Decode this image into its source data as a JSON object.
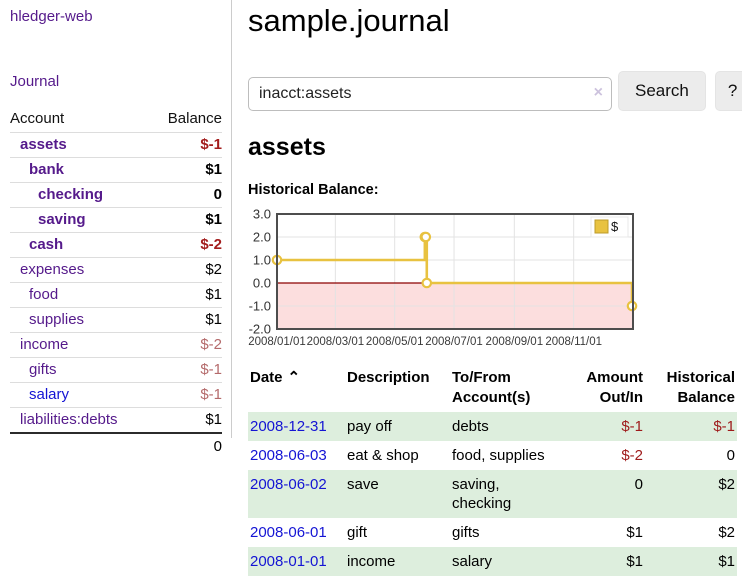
{
  "app": {
    "brand": "hledger-web"
  },
  "colors": {
    "link_purple": "#551a8b",
    "link_blue": "#1414d4",
    "negative_strong": "#a31d1d",
    "negative_soft": "#b46a6b",
    "row_green": "#ddeedd"
  },
  "sidebar": {
    "journal_link": "Journal",
    "account_header": "Account",
    "balance_header": "Balance",
    "accounts": [
      {
        "name": "assets",
        "balance": "$-1",
        "depth": 1,
        "bold": true
      },
      {
        "name": "bank",
        "balance": "$1",
        "depth": 2,
        "bold": true
      },
      {
        "name": "checking",
        "balance": "0",
        "depth": 3,
        "bold": true
      },
      {
        "name": "saving",
        "balance": "$1",
        "depth": 3,
        "bold": true
      },
      {
        "name": "cash",
        "balance": "$-2",
        "depth": 2,
        "bold": true
      },
      {
        "name": "expenses",
        "balance": "$2",
        "depth": 1
      },
      {
        "name": "food",
        "balance": "$1",
        "depth": 2
      },
      {
        "name": "supplies",
        "balance": "$1",
        "depth": 2
      },
      {
        "name": "income",
        "balance": "$-2",
        "depth": 1
      },
      {
        "name": "gifts",
        "balance": "$-1",
        "depth": 2
      },
      {
        "name": "salary",
        "balance": "$-1",
        "depth": 2,
        "unvisited": true
      },
      {
        "name": "liabilities:debts",
        "balance": "$1",
        "depth": 1
      }
    ],
    "total": "0"
  },
  "main": {
    "title": "sample.journal",
    "search": {
      "value": "inacct:assets",
      "clear_icon": "×",
      "search_button": "Search",
      "help_button": "?"
    },
    "account_heading": "assets",
    "chart_label": "Historical Balance:"
  },
  "chart_data": {
    "type": "line",
    "step": true,
    "title": "Historical Balance",
    "ylim": [
      -2,
      3
    ],
    "x_total_days": 366,
    "grid": true,
    "legend_position": "top-right",
    "series": [
      {
        "name": "$",
        "points": [
          {
            "date": "2008-01-01",
            "day": 0,
            "value": 1
          },
          {
            "date": "2008-06-01",
            "day": 152,
            "value": 2
          },
          {
            "date": "2008-06-02",
            "day": 153,
            "value": 2
          },
          {
            "date": "2008-06-03",
            "day": 154,
            "value": 0
          },
          {
            "date": "2008-12-31",
            "day": 365,
            "value": -1
          }
        ]
      }
    ],
    "y_ticks": [
      {
        "value": 3,
        "label": "3.0"
      },
      {
        "value": 2,
        "label": "2.0"
      },
      {
        "value": 1,
        "label": "1.0"
      },
      {
        "value": 0,
        "label": "0.0"
      },
      {
        "value": -1,
        "label": "-1.0"
      },
      {
        "value": -2,
        "label": "-2.0"
      }
    ],
    "x_ticks": [
      {
        "day": 0,
        "label": "2008/01/01"
      },
      {
        "day": 60,
        "label": "2008/03/01"
      },
      {
        "day": 121,
        "label": "2008/05/01"
      },
      {
        "day": 182,
        "label": "2008/07/01"
      },
      {
        "day": 244,
        "label": "2008/09/01"
      },
      {
        "day": 305,
        "label": "2008/11/01"
      }
    ],
    "colors": {
      "series": "#e8c240",
      "negative_fill": "#fcdede",
      "zero_line": "#8b0000",
      "grid": "#e3e3e3",
      "border": "#4d4d4d"
    }
  },
  "register": {
    "headers": {
      "date": "Date",
      "description": "Description",
      "accounts": "To/From Account(s)",
      "amount": "Amount Out/In",
      "balance": "Historical Balance"
    },
    "sort_icon": "⌃",
    "rows": [
      {
        "date": "2008-12-31",
        "description": "pay off",
        "accounts": "debts",
        "amount": "$-1",
        "balance": "$-1"
      },
      {
        "date": "2008-06-03",
        "description": "eat & shop",
        "accounts": "food, supplies",
        "amount": "$-2",
        "balance": "0"
      },
      {
        "date": "2008-06-02",
        "description": "save",
        "accounts": "saving, checking",
        "amount": "0",
        "balance": "$2"
      },
      {
        "date": "2008-06-01",
        "description": "gift",
        "accounts": "gifts",
        "amount": "$1",
        "balance": "$2"
      },
      {
        "date": "2008-01-01",
        "description": "income",
        "accounts": "salary",
        "amount": "$1",
        "balance": "$1"
      }
    ]
  }
}
